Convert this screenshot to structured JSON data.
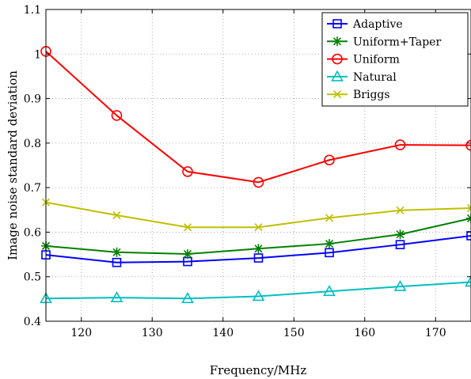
{
  "chart_data": {
    "type": "line",
    "title": "",
    "xlabel": "Frequency/MHz",
    "ylabel": "Image noise standard deviation",
    "xlim": [
      115,
      175
    ],
    "ylim": [
      0.4,
      1.1
    ],
    "x_ticks": [
      120,
      130,
      140,
      150,
      160,
      170
    ],
    "y_ticks": [
      0.4,
      0.5,
      0.6,
      0.7,
      0.8,
      0.9,
      1,
      1.1
    ],
    "x_tick_labels": [
      "120",
      "130",
      "140",
      "150",
      "160",
      "170"
    ],
    "y_tick_labels": [
      "0.4",
      "0.5",
      "0.6",
      "0.7",
      "0.8",
      "0.9",
      "1",
      "1.1"
    ],
    "grid": true,
    "legend_position": "top-right",
    "x": [
      115,
      125,
      135,
      145,
      155,
      165,
      175
    ],
    "series": [
      {
        "name": "Adaptive",
        "color": "#0000ff",
        "marker": "square",
        "values": [
          0.549,
          0.532,
          0.534,
          0.542,
          0.554,
          0.572,
          0.592
        ]
      },
      {
        "name": "Uniform+Taper",
        "color": "#008000",
        "marker": "star",
        "values": [
          0.569,
          0.555,
          0.551,
          0.563,
          0.574,
          0.595,
          0.631
        ]
      },
      {
        "name": "Uniform",
        "color": "#ff0000",
        "marker": "circle",
        "values": [
          1.006,
          0.862,
          0.736,
          0.712,
          0.762,
          0.796,
          0.795
        ]
      },
      {
        "name": "Natural",
        "color": "#00bfbf",
        "marker": "triangle",
        "values": [
          0.451,
          0.453,
          0.451,
          0.456,
          0.467,
          0.478,
          0.488
        ]
      },
      {
        "name": "Briggs",
        "color": "#bfbf00",
        "marker": "x",
        "values": [
          0.667,
          0.638,
          0.611,
          0.611,
          0.632,
          0.649,
          0.654
        ]
      }
    ]
  }
}
